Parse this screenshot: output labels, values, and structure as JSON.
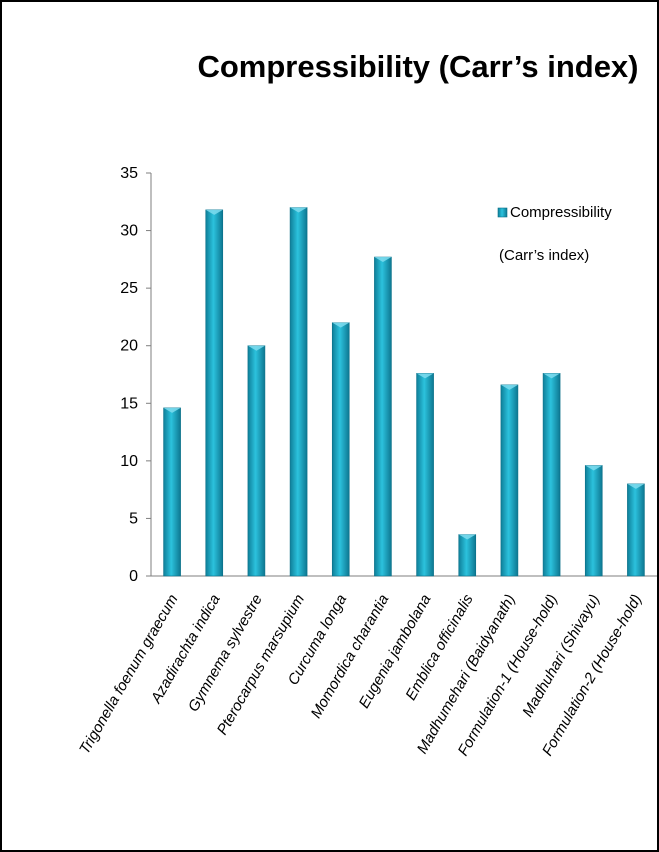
{
  "chart_data": {
    "type": "bar",
    "title": "Compressibility (Carr’s index)",
    "xlabel": "",
    "ylabel": "",
    "ylim": [
      0,
      35
    ],
    "yticks": [
      0,
      5,
      10,
      15,
      20,
      25,
      30,
      35
    ],
    "grid": false,
    "legend_position": "top-right",
    "categories": [
      "Trigonella foenum graecum",
      "Azadirachta indica",
      "Gymnema sylvestre",
      "Pterocarpus marsupium",
      "Curcuma longa",
      "Momordica charantia",
      "Eugenia jambolana",
      "Emblica officinalis",
      "Madhumehari (Baidyanath)",
      "Formulation-1 (House-hold)",
      "Madhuhari (Shivayu)",
      "Formulation-2 (House-hold)"
    ],
    "series": [
      {
        "name": "Compressibility (Carr’s index)",
        "color": "#1aa6c6",
        "values": [
          14.6,
          31.8,
          20.0,
          32.0,
          22.0,
          27.7,
          17.6,
          3.6,
          16.6,
          17.6,
          9.6,
          8.0
        ]
      }
    ],
    "legend": {
      "line1": "Compressibility",
      "line2": "(Carr’s index)"
    }
  }
}
